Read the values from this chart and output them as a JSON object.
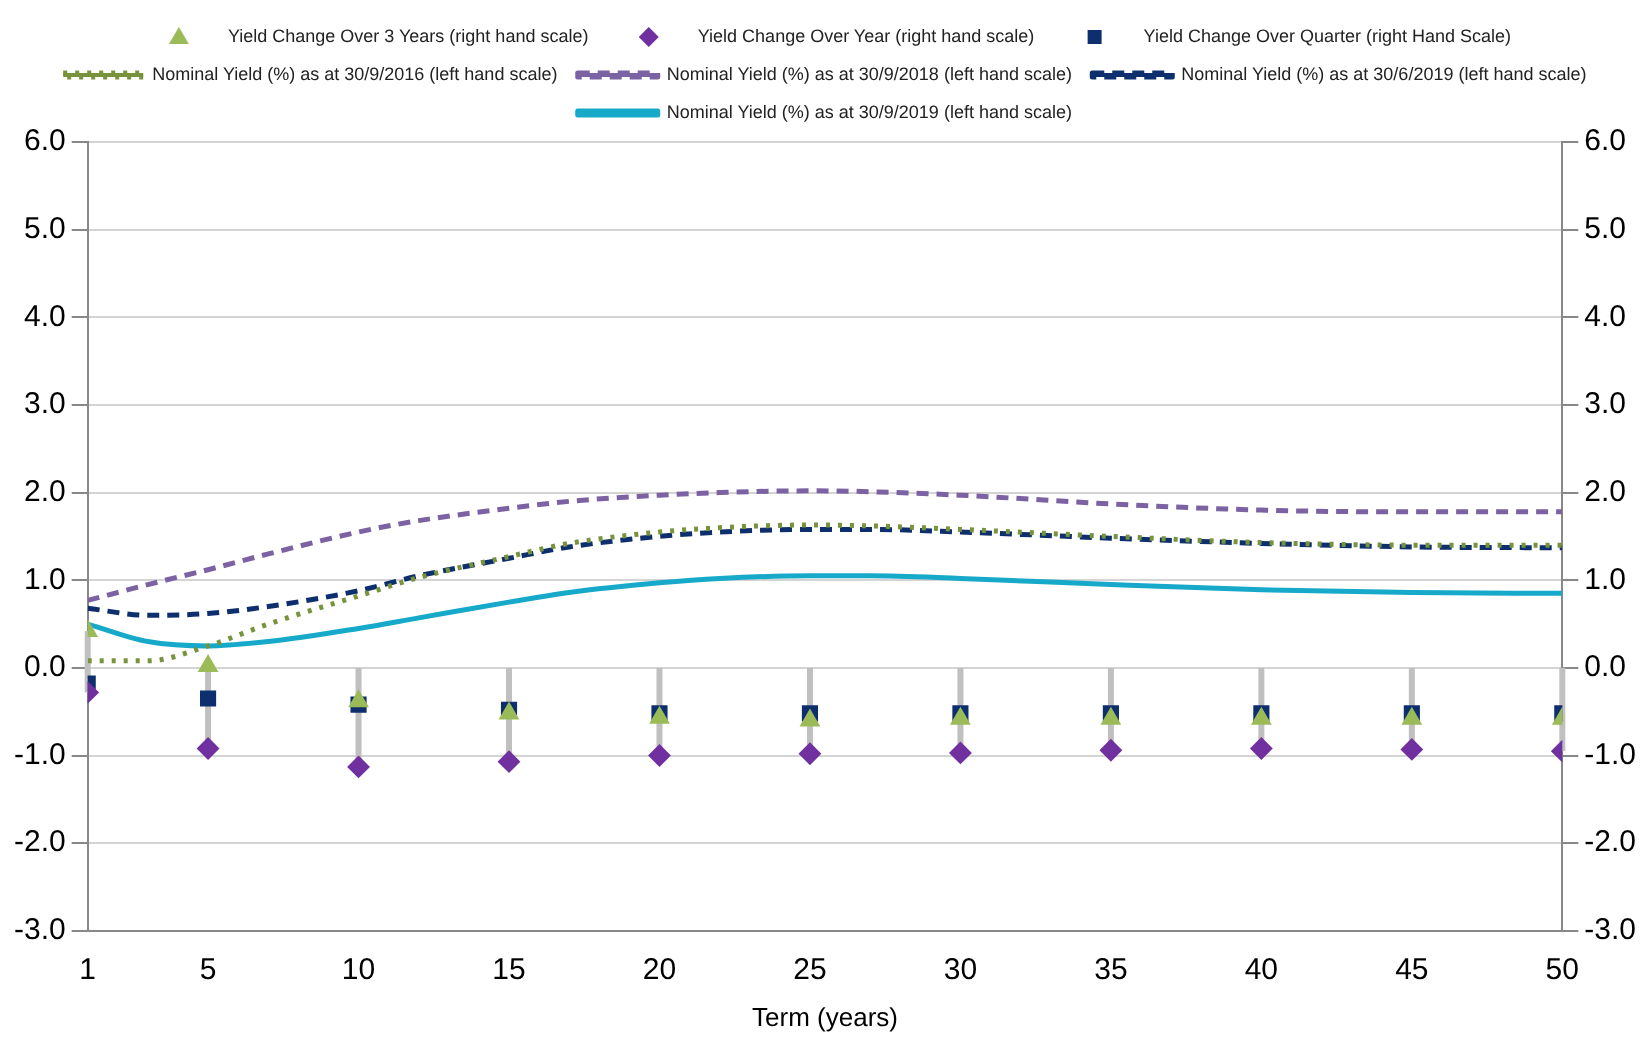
{
  "chart_data": {
    "type": "line",
    "xlabel": "Term (years)",
    "xlim": [
      1,
      50
    ],
    "xticks": [
      1,
      5,
      10,
      15,
      20,
      25,
      30,
      35,
      40,
      45,
      50
    ],
    "ylim": [
      -3,
      6
    ],
    "yticks": [
      {
        "value": -3,
        "label": "-3.0"
      },
      {
        "value": -2,
        "label": "-2.0"
      },
      {
        "value": -1,
        "label": "-1.0"
      },
      {
        "value": 0,
        "label": "0.0"
      },
      {
        "value": 1,
        "label": "1.0"
      },
      {
        "value": 2,
        "label": "2.0"
      },
      {
        "value": 3,
        "label": "3.0"
      },
      {
        "value": 4,
        "label": "4.0"
      },
      {
        "value": 5,
        "label": "5.0"
      },
      {
        "value": 6,
        "label": "6.0"
      }
    ],
    "y2lim": [
      -3,
      6
    ],
    "y2ticks": [
      {
        "value": -3,
        "label": "-3.0"
      },
      {
        "value": -2,
        "label": "-2.0"
      },
      {
        "value": -1,
        "label": "-1.0"
      },
      {
        "value": 0,
        "label": "0.0"
      },
      {
        "value": 1,
        "label": "1.0"
      },
      {
        "value": 2,
        "label": "2.0"
      },
      {
        "value": 3,
        "label": "3.0"
      },
      {
        "value": 4,
        "label": "4.0"
      },
      {
        "value": 5,
        "label": "5.0"
      },
      {
        "value": 6,
        "label": "6.0"
      }
    ],
    "grid": "y",
    "legend": "top",
    "series": [
      {
        "name": "Nominal Yield (%) as at 30/9/2019 (left hand scale)",
        "color": "#17a9c9",
        "line_style": "solid",
        "x": [
          1,
          3,
          5,
          7,
          10,
          12,
          15,
          17,
          20,
          22,
          25,
          27,
          30,
          35,
          40,
          45,
          50
        ],
        "values": [
          0.5,
          0.3,
          0.25,
          0.3,
          0.45,
          0.57,
          0.75,
          0.86,
          0.97,
          1.02,
          1.05,
          1.05,
          1.02,
          0.95,
          0.89,
          0.86,
          0.85
        ]
      },
      {
        "name": "Nominal Yield (%) as at 30/6/2019 (left hand scale)",
        "color": "#0e2f6e",
        "line_style": "dashed",
        "x": [
          1,
          3,
          5,
          7,
          10,
          12,
          15,
          17,
          20,
          22,
          25,
          27,
          30,
          35,
          40,
          45,
          50
        ],
        "values": [
          0.68,
          0.6,
          0.62,
          0.7,
          0.88,
          1.05,
          1.25,
          1.38,
          1.5,
          1.55,
          1.58,
          1.58,
          1.55,
          1.48,
          1.42,
          1.38,
          1.37
        ]
      },
      {
        "name": "Nominal Yield (%) as at 30/9/2018 (left hand scale)",
        "color": "#7b62a3",
        "line_style": "dashed",
        "x": [
          1,
          3,
          5,
          7,
          10,
          12,
          15,
          17,
          20,
          22,
          25,
          27,
          30,
          35,
          40,
          45,
          50
        ],
        "values": [
          0.77,
          0.95,
          1.12,
          1.3,
          1.55,
          1.68,
          1.82,
          1.9,
          1.97,
          2.0,
          2.02,
          2.01,
          1.97,
          1.87,
          1.8,
          1.78,
          1.78
        ]
      },
      {
        "name": "Nominal Yield (%) as at 30/9/2016 (left hand scale)",
        "color": "#77933c",
        "line_style": "dotted",
        "x": [
          1,
          3,
          5,
          7,
          10,
          12,
          15,
          17,
          20,
          22,
          25,
          27,
          30,
          35,
          40,
          45,
          50
        ],
        "values": [
          0.08,
          0.08,
          0.25,
          0.5,
          0.82,
          1.03,
          1.27,
          1.42,
          1.55,
          1.6,
          1.63,
          1.62,
          1.58,
          1.5,
          1.43,
          1.4,
          1.4
        ]
      },
      {
        "name": "Yield Change Over Quarter (right Hand Scale)",
        "type": "scatter",
        "marker": "square",
        "color": "#0e2f6e",
        "x": [
          1,
          5,
          10,
          15,
          20,
          25,
          30,
          35,
          40,
          45,
          50
        ],
        "values": [
          -0.18,
          -0.35,
          -0.42,
          -0.48,
          -0.52,
          -0.52,
          -0.52,
          -0.52,
          -0.52,
          -0.52,
          -0.52
        ]
      },
      {
        "name": "Yield Change Over Year (right hand scale)",
        "type": "scatter",
        "marker": "diamond",
        "color": "#7030a0",
        "x": [
          1,
          5,
          10,
          15,
          20,
          25,
          30,
          35,
          40,
          45,
          50
        ],
        "values": [
          -0.28,
          -0.92,
          -1.13,
          -1.07,
          -1.0,
          -0.98,
          -0.97,
          -0.94,
          -0.92,
          -0.93,
          -0.95
        ],
        "errors": [
          [
            -0.28,
            0.42
          ],
          [
            -0.92,
            0.05
          ],
          [
            -1.13,
            0
          ],
          [
            -1.07,
            0
          ],
          [
            -1.0,
            0
          ],
          [
            -0.98,
            0
          ],
          [
            -0.97,
            0
          ],
          [
            -0.94,
            0
          ],
          [
            -0.92,
            0
          ],
          [
            -0.93,
            0
          ],
          [
            -0.95,
            0
          ]
        ]
      },
      {
        "name": "Yield Change Over 3 Years (right hand scale)",
        "type": "scatter",
        "marker": "triangle",
        "color": "#9bbb59",
        "x": [
          1,
          5,
          10,
          15,
          20,
          25,
          30,
          35,
          40,
          45,
          50
        ],
        "values": [
          0.42,
          0.02,
          -0.38,
          -0.52,
          -0.57,
          -0.6,
          -0.58,
          -0.58,
          -0.58,
          -0.58,
          -0.58
        ]
      }
    ]
  }
}
